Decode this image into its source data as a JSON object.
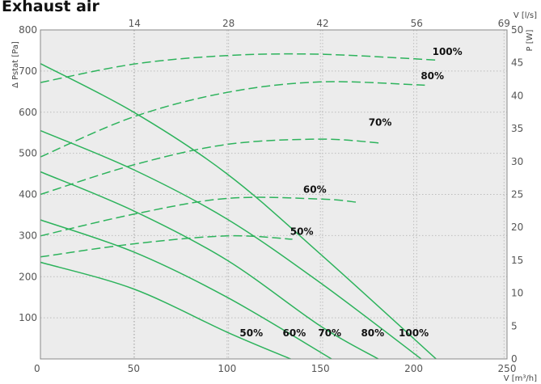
{
  "chart_data": {
    "type": "line",
    "title": "Exhaust air",
    "xlabel": "V [m³/h]",
    "x2label": "V [l/s]",
    "ylabel": "Δ Pstat [Pa]",
    "y2label": "P [W]",
    "xlim": [
      0,
      250
    ],
    "ylim": [
      0,
      800
    ],
    "y2lim": [
      0,
      50
    ],
    "xticks": [
      "0",
      "50",
      "100",
      "150",
      "200",
      "250"
    ],
    "x2ticks": [
      "14",
      "28",
      "42",
      "56",
      "69"
    ],
    "yticks": [
      "100",
      "200",
      "300",
      "400",
      "500",
      "600",
      "700",
      "800"
    ],
    "y2ticks": [
      "0",
      "5",
      "10",
      "15",
      "20",
      "25",
      "30",
      "35",
      "40",
      "45",
      "50"
    ],
    "grid": true,
    "line_color": "#2db35c",
    "pressure_series": [
      {
        "name": "50%",
        "x": [
          0,
          50,
          100,
          134
        ],
        "y": [
          235,
          170,
          65,
          0
        ]
      },
      {
        "name": "60%",
        "x": [
          0,
          50,
          100,
          156
        ],
        "y": [
          338,
          260,
          150,
          0
        ]
      },
      {
        "name": "70%",
        "x": [
          0,
          50,
          100,
          150,
          181
        ],
        "y": [
          455,
          360,
          240,
          80,
          0
        ]
      },
      {
        "name": "80%",
        "x": [
          0,
          50,
          100,
          150,
          204
        ],
        "y": [
          555,
          460,
          340,
          185,
          0
        ]
      },
      {
        "name": "100%",
        "x": [
          0,
          50,
          100,
          150,
          212
        ],
        "y": [
          718,
          600,
          450,
          255,
          0
        ]
      }
    ],
    "power_series": [
      {
        "name": "50%",
        "x": [
          0,
          50,
          100,
          135
        ],
        "y": [
          15.5,
          17.5,
          18.7,
          18.2
        ]
      },
      {
        "name": "60%",
        "x": [
          0,
          50,
          100,
          150,
          170
        ],
        "y": [
          18.7,
          22,
          24.4,
          24.3,
          23.8
        ]
      },
      {
        "name": "70%",
        "x": [
          0,
          50,
          100,
          150,
          182
        ],
        "y": [
          25,
          29.5,
          32.6,
          33.4,
          32.8
        ]
      },
      {
        "name": "80%",
        "x": [
          0,
          50,
          100,
          150,
          206
        ],
        "y": [
          30.7,
          36.8,
          40.5,
          42.1,
          41.6
        ]
      },
      {
        "name": "100%",
        "x": [
          0,
          50,
          100,
          150,
          213
        ],
        "y": [
          42,
          44.8,
          46.1,
          46.3,
          45.4
        ]
      }
    ],
    "series_labels": [
      {
        "name": "100%",
        "x": 218,
        "y": 739
      },
      {
        "name": "80%",
        "x": 210,
        "y": 680
      },
      {
        "name": "70%",
        "x": 182,
        "y": 567
      },
      {
        "name": "60%",
        "x": 147,
        "y": 404
      },
      {
        "name": "50%",
        "x": 140,
        "y": 302
      }
    ],
    "bottom_labels": [
      {
        "name": "50%",
        "x": 113,
        "y": 55
      },
      {
        "name": "60%",
        "x": 136,
        "y": 55
      },
      {
        "name": "70%",
        "x": 155,
        "y": 55
      },
      {
        "name": "80%",
        "x": 178,
        "y": 55
      },
      {
        "name": "100%",
        "x": 200,
        "y": 55
      }
    ]
  }
}
